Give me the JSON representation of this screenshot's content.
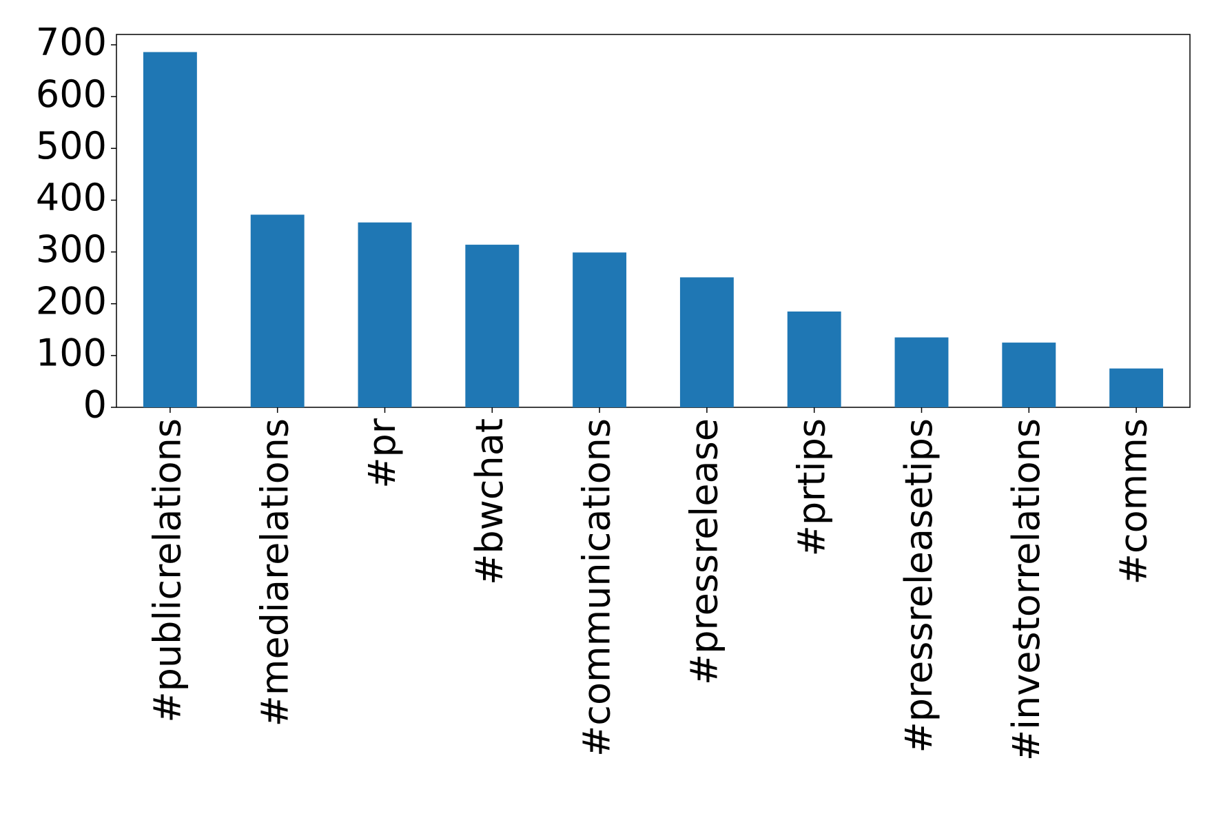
{
  "chart_data": {
    "type": "bar",
    "categories": [
      "#publicrelations",
      "#mediarelations",
      "#pr",
      "#bwchat",
      "#communications",
      "#pressrelease",
      "#prtips",
      "#pressreleasetips",
      "#investorrelations",
      "#comms"
    ],
    "values": [
      686,
      372,
      357,
      314,
      299,
      251,
      185,
      135,
      125,
      75
    ],
    "color": "#1f77b4",
    "ylim": [
      0,
      720
    ],
    "yticks": [
      0,
      100,
      200,
      300,
      400,
      500,
      600,
      700
    ],
    "grid": false
  }
}
